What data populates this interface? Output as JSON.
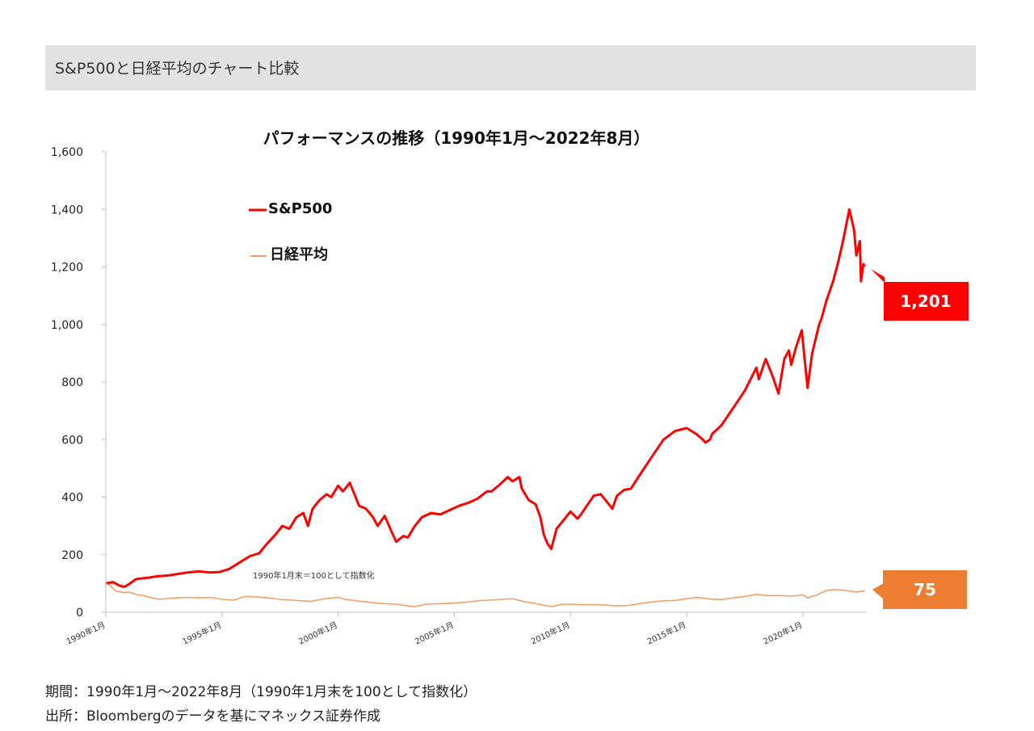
{
  "header": {
    "title": "S&P500と日経平均のチャート比較"
  },
  "footnotes": {
    "period": "期間：1990年1月～2022年8月（1990年1月末を100として指数化）",
    "source": "出所：Bloombergのデータを基にマネックス証券作成"
  },
  "colors": {
    "sp500": "#ff0000",
    "nikkei": "#f0a06a",
    "nikkei_label": "#ed7d31",
    "sp_label": "#ff0000"
  },
  "chart_data": {
    "type": "line",
    "title": "パフォーマンスの推移（1990年1月～2022年8月）",
    "xlabel": "",
    "ylabel": "",
    "ylim": [
      0,
      1600
    ],
    "xlim": [
      1990.0,
      2022.75
    ],
    "yticks": [
      0,
      200,
      400,
      600,
      800,
      1000,
      1200,
      1400,
      1600
    ],
    "ytick_labels": [
      "0",
      "200",
      "400",
      "600",
      "800",
      "1,000",
      "1,200",
      "1,400",
      "1,600"
    ],
    "xticks": [
      1990,
      1995,
      2000,
      2005,
      2010,
      2015,
      2020
    ],
    "xtick_labels": [
      "1990年1月",
      "1995年1月",
      "2000年1月",
      "2005年1月",
      "2010年1月",
      "2015年1月",
      "2020年1月"
    ],
    "grid": false,
    "legend_position": "top-left",
    "annotation": "1990年1月末＝100として指数化",
    "end_labels": {
      "sp500": "1,201",
      "nikkei": "75"
    },
    "series": [
      {
        "name": "S&P500",
        "x": [
          1990.0,
          1990.3,
          1990.6,
          1990.8,
          1991.0,
          1991.3,
          1991.8,
          1992.2,
          1992.7,
          1993.0,
          1993.5,
          1994.0,
          1994.5,
          1994.9,
          1995.3,
          1995.8,
          1996.2,
          1996.6,
          1996.9,
          1997.3,
          1997.6,
          1997.9,
          1998.2,
          1998.5,
          1998.7,
          1998.9,
          1999.2,
          1999.5,
          1999.7,
          2000.0,
          2000.2,
          2000.5,
          2000.7,
          2000.9,
          2001.2,
          2001.5,
          2001.7,
          2002.0,
          2002.3,
          2002.5,
          2002.8,
          2003.0,
          2003.3,
          2003.6,
          2004.0,
          2004.4,
          2004.8,
          2005.2,
          2005.6,
          2006.0,
          2006.4,
          2006.6,
          2006.9,
          2007.3,
          2007.5,
          2007.8,
          2007.9,
          2008.2,
          2008.5,
          2008.7,
          2008.85,
          2009.0,
          2009.17,
          2009.4,
          2009.7,
          2010.0,
          2010.3,
          2010.45,
          2010.7,
          2011.0,
          2011.3,
          2011.6,
          2011.8,
          2012.0,
          2012.3,
          2012.6,
          2013.0,
          2013.5,
          2014.0,
          2014.5,
          2015.0,
          2015.4,
          2015.7,
          2015.8,
          2016.0,
          2016.1,
          2016.5,
          2017.0,
          2017.5,
          2018.0,
          2018.1,
          2018.4,
          2018.7,
          2018.95,
          2019.2,
          2019.4,
          2019.5,
          2019.7,
          2019.95,
          2020.1,
          2020.2,
          2020.4,
          2020.7,
          2020.8,
          2021.0,
          2021.3,
          2021.5,
          2021.7,
          2021.8,
          2022.0,
          2022.2,
          2022.3,
          2022.45,
          2022.5,
          2022.6,
          2022.67
        ],
        "y": [
          100,
          105,
          92,
          88,
          98,
          115,
          120,
          125,
          128,
          132,
          138,
          142,
          138,
          140,
          150,
          175,
          195,
          205,
          235,
          270,
          300,
          290,
          330,
          345,
          300,
          360,
          390,
          410,
          400,
          440,
          420,
          450,
          410,
          370,
          360,
          330,
          300,
          335,
          280,
          245,
          265,
          260,
          300,
          330,
          345,
          340,
          355,
          370,
          380,
          395,
          420,
          420,
          440,
          470,
          455,
          470,
          430,
          390,
          375,
          330,
          270,
          240,
          220,
          290,
          320,
          350,
          325,
          340,
          370,
          405,
          410,
          380,
          360,
          405,
          425,
          430,
          480,
          540,
          600,
          630,
          640,
          620,
          600,
          590,
          600,
          620,
          650,
          710,
          770,
          850,
          810,
          880,
          820,
          760,
          880,
          910,
          860,
          920,
          980,
          860,
          780,
          900,
          1000,
          1020,
          1080,
          1150,
          1210,
          1280,
          1320,
          1400,
          1330,
          1240,
          1290,
          1150,
          1210,
          1201
        ]
      },
      {
        "name": "日経平均",
        "x": [
          1990.0,
          1990.2,
          1990.4,
          1990.6,
          1990.8,
          1991.0,
          1991.3,
          1991.6,
          1992.0,
          1992.3,
          1992.6,
          1993.0,
          1993.5,
          1994.0,
          1994.5,
          1995.0,
          1995.5,
          1996.0,
          1996.5,
          1997.0,
          1997.5,
          1998.0,
          1998.8,
          1999.5,
          2000.0,
          2000.3,
          2000.8,
          2001.5,
          2002.0,
          2002.5,
          2003.0,
          2003.3,
          2003.8,
          2004.5,
          2005.0,
          2005.5,
          2006.0,
          2006.5,
          2007.0,
          2007.5,
          2008.0,
          2008.5,
          2008.9,
          2009.2,
          2009.6,
          2010.0,
          2010.5,
          2011.0,
          2011.5,
          2012.0,
          2012.5,
          2013.0,
          2013.5,
          2014.0,
          2014.5,
          2015.0,
          2015.4,
          2016.0,
          2016.5,
          2017.0,
          2017.5,
          2018.0,
          2018.5,
          2019.0,
          2019.5,
          2020.0,
          2020.2,
          2020.6,
          2021.0,
          2021.3,
          2021.7,
          2022.0,
          2022.3,
          2022.67
        ],
        "y": [
          100,
          92,
          75,
          72,
          68,
          70,
          62,
          58,
          50,
          45,
          47,
          50,
          52,
          50,
          52,
          45,
          42,
          55,
          53,
          50,
          45,
          42,
          38,
          48,
          52,
          45,
          40,
          33,
          30,
          28,
          22,
          20,
          28,
          30,
          32,
          35,
          40,
          42,
          45,
          47,
          37,
          30,
          24,
          20,
          27,
          28,
          26,
          27,
          25,
          22,
          24,
          30,
          36,
          40,
          41,
          47,
          52,
          46,
          44,
          50,
          55,
          62,
          58,
          58,
          56,
          60,
          50,
          60,
          75,
          79,
          77,
          74,
          70,
          75
        ]
      }
    ]
  }
}
